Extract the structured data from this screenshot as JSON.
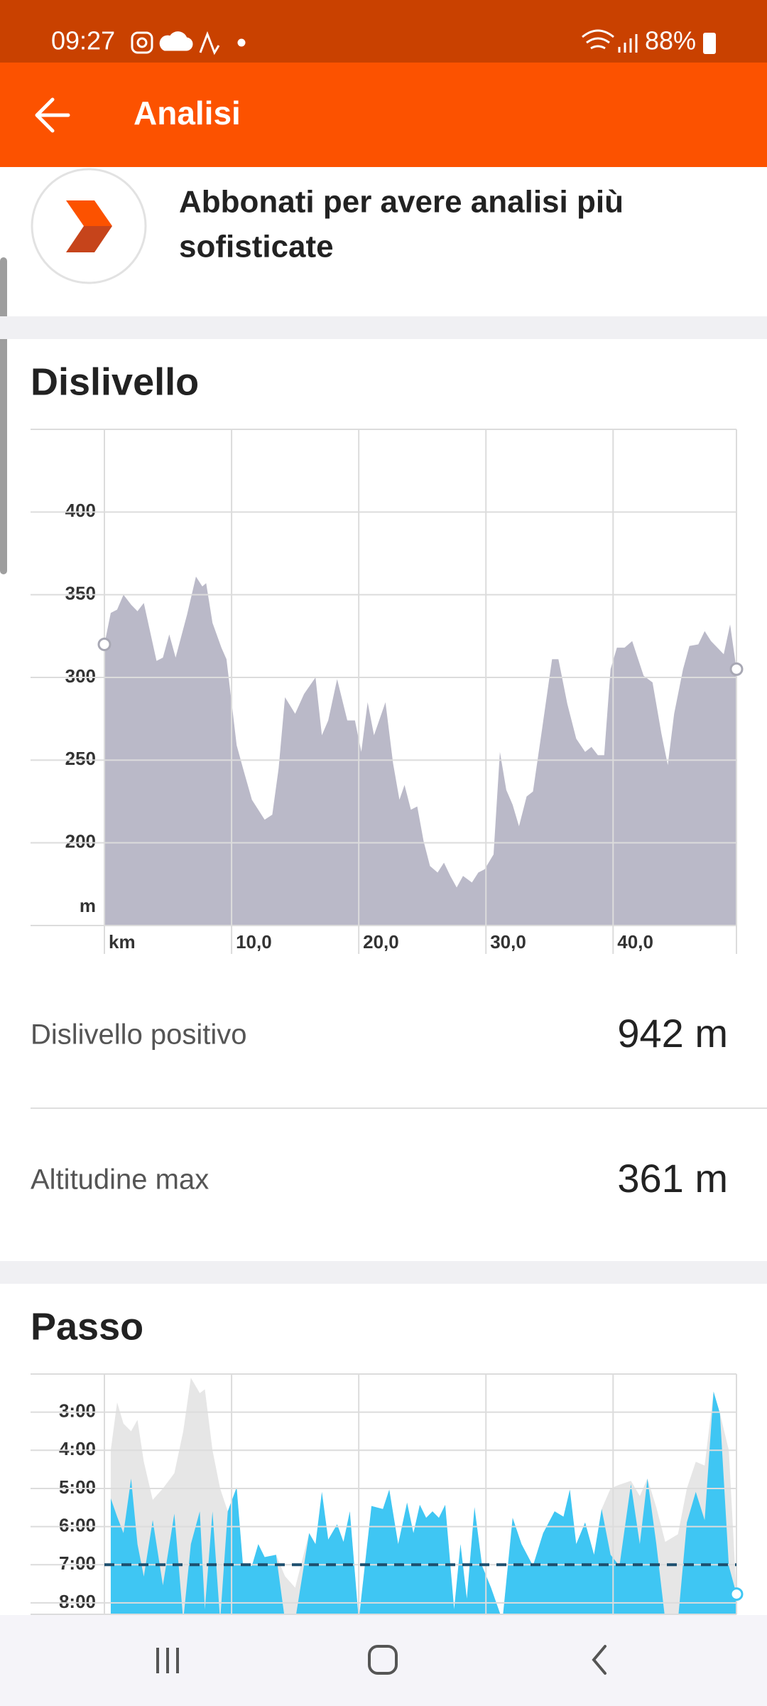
{
  "status_bar": {
    "time": "09:27",
    "battery": "88%"
  },
  "app_bar": {
    "title": "Analisi"
  },
  "upsell": {
    "lines": [
      "Abbonati per avere analisi più",
      "sofisticate"
    ]
  },
  "stats": [
    {
      "label": "Dislivello positivo",
      "value": "942 m"
    },
    {
      "label": "Altitudine max",
      "value": "361 m"
    }
  ],
  "chart_data": [
    {
      "type": "area",
      "title": "Dislivello",
      "y_label": "m",
      "color": "#bab9c8",
      "grid": true,
      "end_markers": "both",
      "xlim": [
        0,
        49.7
      ],
      "ylim": [
        150,
        450
      ],
      "xticks": [
        {
          "value": 0,
          "label": "km"
        },
        {
          "value": 10,
          "label": "10,0"
        },
        {
          "value": 20,
          "label": "20,0"
        },
        {
          "value": 30,
          "label": "30,0"
        },
        {
          "value": 40,
          "label": "40,0"
        }
      ],
      "yticks": [
        200,
        250,
        300,
        350,
        400
      ],
      "x": [
        0,
        0.5,
        1.0,
        1.5,
        2.1,
        2.6,
        3.1,
        4.1,
        4.6,
        5.1,
        5.6,
        6.5,
        7.2,
        7.7,
        8.0,
        8.5,
        9.2,
        9.6,
        10.4,
        10.9,
        11.6,
        12.6,
        13.2,
        13.7,
        14.2,
        15.0,
        15.7,
        16.6,
        17.1,
        17.6,
        18.3,
        19.1,
        19.7,
        20.2,
        20.7,
        21.2,
        22.1,
        22.7,
        23.2,
        23.6,
        24.1,
        24.6,
        25.1,
        25.6,
        26.2,
        26.7,
        27.2,
        27.7,
        28.2,
        28.9,
        29.4,
        29.9,
        30.6,
        31.1,
        31.6,
        32.1,
        32.6,
        33.2,
        33.7,
        34.4,
        35.2,
        35.7,
        36.4,
        37.1,
        37.8,
        38.3,
        38.8,
        39.3,
        39.8,
        40.3,
        40.9,
        41.5,
        42.4,
        43.1,
        43.8,
        44.3,
        44.8,
        45.5,
        46.0,
        46.7,
        47.2,
        47.7,
        48.2,
        48.7,
        49.2,
        49.7
      ],
      "values": [
        320,
        339,
        341,
        350,
        344,
        340,
        345,
        310,
        312,
        326,
        312,
        338,
        361,
        355,
        357,
        333,
        318,
        311,
        259,
        245,
        226,
        214,
        217,
        245,
        288,
        278,
        290,
        300,
        265,
        274,
        299,
        274,
        274,
        255,
        285,
        265,
        285,
        248,
        226,
        235,
        220,
        222,
        201,
        186,
        182,
        188,
        180,
        173,
        180,
        176,
        182,
        184,
        193,
        255,
        232,
        223,
        210,
        228,
        231,
        268,
        311,
        311,
        284,
        263,
        255,
        258,
        253,
        253,
        305,
        318,
        318,
        322,
        301,
        297,
        266,
        247,
        278,
        305,
        319,
        320,
        328,
        322,
        318,
        314,
        332,
        305
      ]
    },
    {
      "type": "area",
      "title": "Passo",
      "grid": true,
      "y_inverted": true,
      "x_tick_labels": false,
      "end_markers": "end",
      "xlim": [
        0,
        49.7
      ],
      "ylim": [
        2,
        8.3
      ],
      "average": 7,
      "xticks": [
        0,
        10,
        20,
        30,
        40
      ],
      "yticks": [
        {
          "value": 3,
          "label": "3:00"
        },
        {
          "value": 4,
          "label": "4:00"
        },
        {
          "value": 5,
          "label": "5:00"
        },
        {
          "value": 6,
          "label": "6:00"
        },
        {
          "value": 7,
          "label": "7:00"
        },
        {
          "value": 8,
          "label": "8:00"
        }
      ],
      "x": [
        0.5,
        1.0,
        1.5,
        2.1,
        2.6,
        3.1,
        3.8,
        4.6,
        5.5,
        6.2,
        6.8,
        7.5,
        7.9,
        8.5,
        9.1,
        9.7,
        10.4,
        10.9,
        11.6,
        12.1,
        12.6,
        13.5,
        14.2,
        15.0,
        16.1,
        16.6,
        17.1,
        17.6,
        18.3,
        18.8,
        19.3,
        20.0,
        21.0,
        21.9,
        22.4,
        23.1,
        23.8,
        24.3,
        24.8,
        25.3,
        25.8,
        26.3,
        26.8,
        27.5,
        28.0,
        28.5,
        29.1,
        29.7,
        30.4,
        31.3,
        32.1,
        32.8,
        33.7,
        34.5,
        35.4,
        36.1,
        36.6,
        37.1,
        37.8,
        38.5,
        39.1,
        39.8,
        40.5,
        41.4,
        42.1,
        42.7,
        43.4,
        44.1,
        45.1,
        45.8,
        46.5,
        47.2,
        47.9,
        48.4,
        49.1,
        49.7
      ],
      "series": [
        {
          "color": "#e6e6e6",
          "values": [
            4.0,
            2.74,
            3.3,
            3.5,
            3.2,
            4.3,
            5.3,
            5.0,
            4.6,
            3.5,
            2.1,
            2.5,
            2.4,
            4.0,
            5.0,
            5.6,
            4.97,
            7.03,
            7.03,
            6.46,
            6.8,
            6.74,
            7.3,
            7.6,
            6.17,
            6.46,
            5.09,
            6.34,
            5.94,
            6.4,
            5.6,
            8.46,
            5.46,
            5.54,
            5.03,
            6.46,
            5.37,
            6.17,
            5.43,
            5.77,
            5.6,
            5.77,
            5.43,
            8.17,
            6.46,
            7.89,
            5.49,
            7.03,
            7.6,
            8.46,
            5.77,
            6.46,
            7.03,
            6.17,
            5.6,
            5.74,
            5.03,
            6.46,
            5.89,
            6.74,
            5.54,
            5.0,
            4.9,
            4.8,
            5.2,
            4.74,
            5.5,
            6.4,
            6.2,
            5.0,
            4.3,
            4.4,
            2.46,
            3.03,
            4.0,
            7.77
          ]
        },
        {
          "color": "#3fc6f3",
          "values": [
            5.26,
            5.74,
            6.17,
            4.74,
            6.46,
            7.31,
            5.83,
            7.54,
            5.66,
            8.46,
            6.46,
            5.6,
            8.17,
            5.6,
            8.46,
            5.6,
            4.97,
            7.03,
            7.03,
            6.46,
            6.8,
            6.74,
            8.46,
            8.46,
            6.17,
            6.46,
            5.09,
            6.34,
            5.94,
            6.4,
            5.6,
            8.46,
            5.46,
            5.54,
            5.03,
            6.46,
            5.37,
            6.17,
            5.43,
            5.77,
            5.6,
            5.77,
            5.43,
            8.17,
            6.46,
            7.89,
            5.49,
            7.03,
            7.6,
            8.46,
            5.77,
            6.46,
            7.03,
            6.17,
            5.6,
            5.74,
            5.03,
            6.46,
            5.89,
            6.74,
            5.54,
            6.74,
            7.03,
            4.89,
            6.46,
            4.74,
            6.46,
            8.46,
            8.46,
            5.89,
            5.09,
            5.83,
            2.46,
            3.03,
            7.03,
            7.77
          ]
        }
      ]
    }
  ]
}
